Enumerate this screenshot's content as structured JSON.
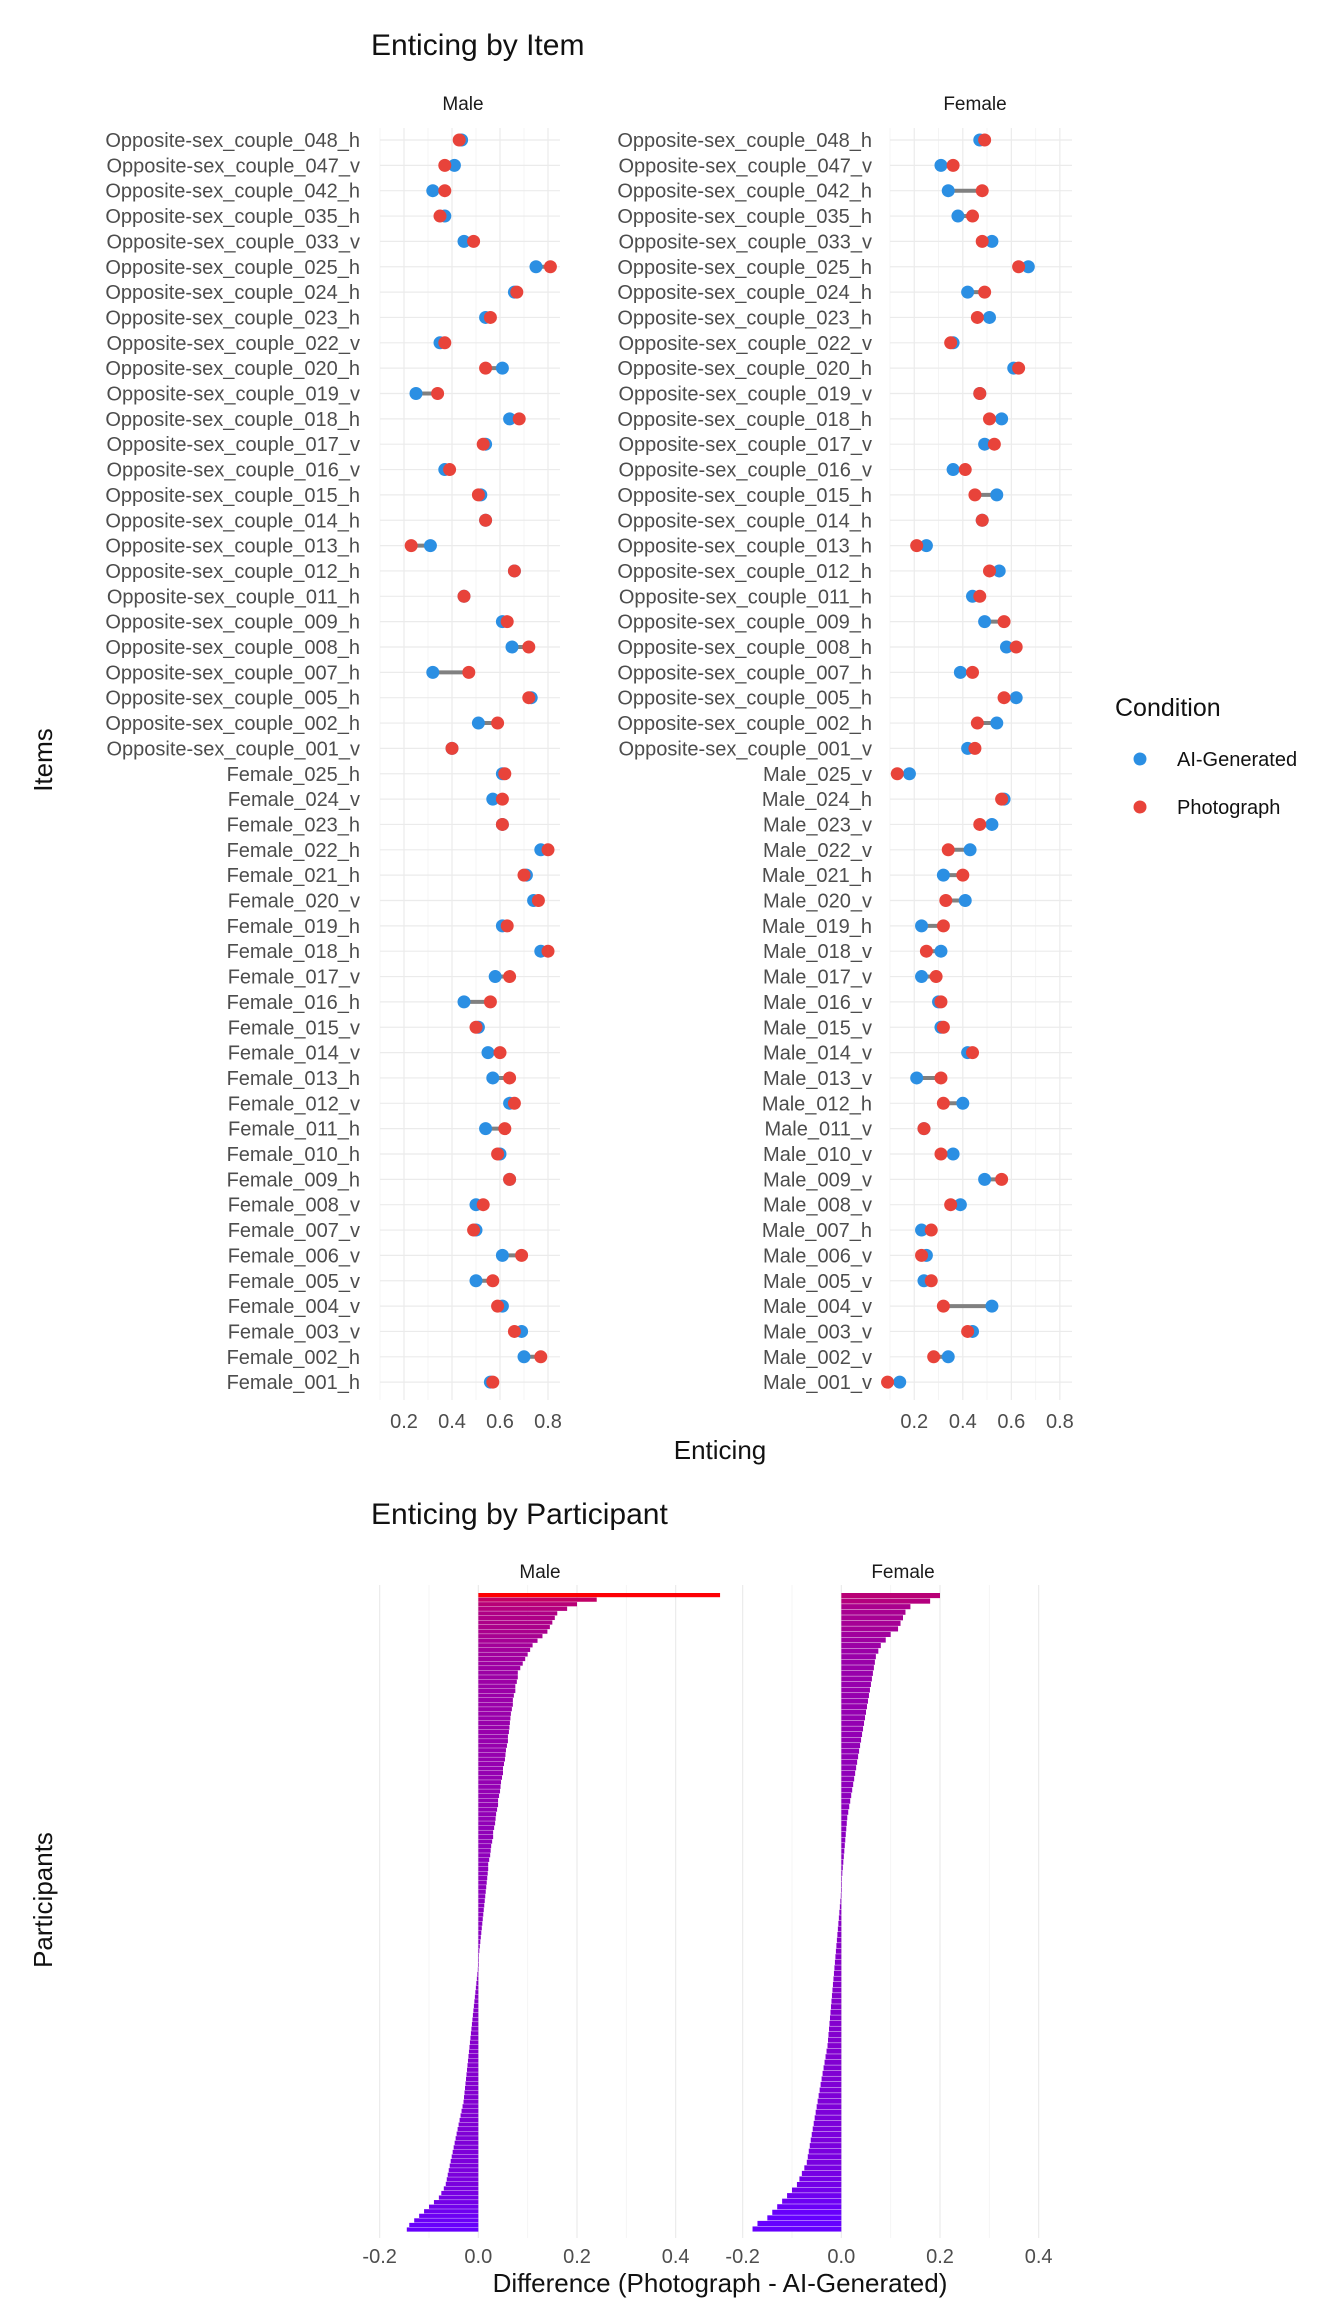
{
  "colors": {
    "ai_generated": "#2b8fe3",
    "photograph": "#e8433a",
    "segment": "#808080",
    "bar_low": "#6600ff",
    "bar_high": "#ff0000"
  },
  "chart_data": [
    {
      "type": "dumbbell",
      "title": "Enticing by Item",
      "xlabel": "Enticing",
      "ylabel": "Items",
      "xlim": [
        0.1,
        0.85
      ],
      "xticks": [
        "0.2",
        "0.4",
        "0.6",
        "0.8"
      ],
      "legend": {
        "title": "Condition",
        "placement": "right",
        "entries": [
          "AI-Generated",
          "Photograph"
        ]
      },
      "panels": [
        {
          "name": "Male",
          "items": [
            {
              "label": "Opposite-sex_couple_048_h",
              "ai": 0.44,
              "photo": 0.43
            },
            {
              "label": "Opposite-sex_couple_047_v",
              "ai": 0.41,
              "photo": 0.37
            },
            {
              "label": "Opposite-sex_couple_042_h",
              "ai": 0.32,
              "photo": 0.37
            },
            {
              "label": "Opposite-sex_couple_035_h",
              "ai": 0.37,
              "photo": 0.35
            },
            {
              "label": "Opposite-sex_couple_033_v",
              "ai": 0.45,
              "photo": 0.49
            },
            {
              "label": "Opposite-sex_couple_025_h",
              "ai": 0.75,
              "photo": 0.81
            },
            {
              "label": "Opposite-sex_couple_024_h",
              "ai": 0.66,
              "photo": 0.67
            },
            {
              "label": "Opposite-sex_couple_023_h",
              "ai": 0.54,
              "photo": 0.56
            },
            {
              "label": "Opposite-sex_couple_022_v",
              "ai": 0.35,
              "photo": 0.37
            },
            {
              "label": "Opposite-sex_couple_020_h",
              "ai": 0.61,
              "photo": 0.54
            },
            {
              "label": "Opposite-sex_couple_019_v",
              "ai": 0.25,
              "photo": 0.34
            },
            {
              "label": "Opposite-sex_couple_018_h",
              "ai": 0.64,
              "photo": 0.68
            },
            {
              "label": "Opposite-sex_couple_017_v",
              "ai": 0.54,
              "photo": 0.53
            },
            {
              "label": "Opposite-sex_couple_016_v",
              "ai": 0.37,
              "photo": 0.39
            },
            {
              "label": "Opposite-sex_couple_015_h",
              "ai": 0.52,
              "photo": 0.51
            },
            {
              "label": "Opposite-sex_couple_014_h",
              "ai": 0.54,
              "photo": 0.54
            },
            {
              "label": "Opposite-sex_couple_013_h",
              "ai": 0.31,
              "photo": 0.23
            },
            {
              "label": "Opposite-sex_couple_012_h",
              "ai": 0.66,
              "photo": 0.66
            },
            {
              "label": "Opposite-sex_couple_011_h",
              "ai": 0.45,
              "photo": 0.45
            },
            {
              "label": "Opposite-sex_couple_009_h",
              "ai": 0.61,
              "photo": 0.63
            },
            {
              "label": "Opposite-sex_couple_008_h",
              "ai": 0.65,
              "photo": 0.72
            },
            {
              "label": "Opposite-sex_couple_007_h",
              "ai": 0.32,
              "photo": 0.47
            },
            {
              "label": "Opposite-sex_couple_005_h",
              "ai": 0.73,
              "photo": 0.72
            },
            {
              "label": "Opposite-sex_couple_002_h",
              "ai": 0.51,
              "photo": 0.59
            },
            {
              "label": "Opposite-sex_couple_001_v",
              "ai": 0.4,
              "photo": 0.4
            },
            {
              "label": "Female_025_h",
              "ai": 0.61,
              "photo": 0.62
            },
            {
              "label": "Female_024_v",
              "ai": 0.57,
              "photo": 0.61
            },
            {
              "label": "Female_023_h",
              "ai": 0.61,
              "photo": 0.61
            },
            {
              "label": "Female_022_h",
              "ai": 0.77,
              "photo": 0.8
            },
            {
              "label": "Female_021_h",
              "ai": 0.71,
              "photo": 0.7
            },
            {
              "label": "Female_020_v",
              "ai": 0.74,
              "photo": 0.76
            },
            {
              "label": "Female_019_h",
              "ai": 0.61,
              "photo": 0.63
            },
            {
              "label": "Female_018_h",
              "ai": 0.77,
              "photo": 0.8
            },
            {
              "label": "Female_017_v",
              "ai": 0.58,
              "photo": 0.64
            },
            {
              "label": "Female_016_h",
              "ai": 0.45,
              "photo": 0.56
            },
            {
              "label": "Female_015_v",
              "ai": 0.51,
              "photo": 0.5
            },
            {
              "label": "Female_014_v",
              "ai": 0.55,
              "photo": 0.6
            },
            {
              "label": "Female_013_h",
              "ai": 0.57,
              "photo": 0.64
            },
            {
              "label": "Female_012_v",
              "ai": 0.64,
              "photo": 0.66
            },
            {
              "label": "Female_011_h",
              "ai": 0.54,
              "photo": 0.62
            },
            {
              "label": "Female_010_h",
              "ai": 0.6,
              "photo": 0.59
            },
            {
              "label": "Female_009_h",
              "ai": 0.64,
              "photo": 0.64
            },
            {
              "label": "Female_008_v",
              "ai": 0.5,
              "photo": 0.53
            },
            {
              "label": "Female_007_v",
              "ai": 0.5,
              "photo": 0.49
            },
            {
              "label": "Female_006_v",
              "ai": 0.61,
              "photo": 0.69
            },
            {
              "label": "Female_005_v",
              "ai": 0.5,
              "photo": 0.57
            },
            {
              "label": "Female_004_v",
              "ai": 0.61,
              "photo": 0.59
            },
            {
              "label": "Female_003_v",
              "ai": 0.69,
              "photo": 0.66
            },
            {
              "label": "Female_002_h",
              "ai": 0.7,
              "photo": 0.77
            },
            {
              "label": "Female_001_h",
              "ai": 0.56,
              "photo": 0.57
            }
          ]
        },
        {
          "name": "Female",
          "items": [
            {
              "label": "Opposite-sex_couple_048_h",
              "ai": 0.47,
              "photo": 0.49
            },
            {
              "label": "Opposite-sex_couple_047_v",
              "ai": 0.31,
              "photo": 0.36
            },
            {
              "label": "Opposite-sex_couple_042_h",
              "ai": 0.34,
              "photo": 0.48
            },
            {
              "label": "Opposite-sex_couple_035_h",
              "ai": 0.38,
              "photo": 0.44
            },
            {
              "label": "Opposite-sex_couple_033_v",
              "ai": 0.52,
              "photo": 0.48
            },
            {
              "label": "Opposite-sex_couple_025_h",
              "ai": 0.67,
              "photo": 0.63
            },
            {
              "label": "Opposite-sex_couple_024_h",
              "ai": 0.42,
              "photo": 0.49
            },
            {
              "label": "Opposite-sex_couple_023_h",
              "ai": 0.51,
              "photo": 0.46
            },
            {
              "label": "Opposite-sex_couple_022_v",
              "ai": 0.36,
              "photo": 0.35
            },
            {
              "label": "Opposite-sex_couple_020_h",
              "ai": 0.61,
              "photo": 0.63
            },
            {
              "label": "Opposite-sex_couple_019_v",
              "ai": 0.47,
              "photo": 0.47
            },
            {
              "label": "Opposite-sex_couple_018_h",
              "ai": 0.56,
              "photo": 0.51
            },
            {
              "label": "Opposite-sex_couple_017_v",
              "ai": 0.49,
              "photo": 0.53
            },
            {
              "label": "Opposite-sex_couple_016_v",
              "ai": 0.36,
              "photo": 0.41
            },
            {
              "label": "Opposite-sex_couple_015_h",
              "ai": 0.54,
              "photo": 0.45
            },
            {
              "label": "Opposite-sex_couple_014_h",
              "ai": 0.48,
              "photo": 0.48
            },
            {
              "label": "Opposite-sex_couple_013_h",
              "ai": 0.25,
              "photo": 0.21
            },
            {
              "label": "Opposite-sex_couple_012_h",
              "ai": 0.55,
              "photo": 0.51
            },
            {
              "label": "Opposite-sex_couple_011_h",
              "ai": 0.44,
              "photo": 0.47
            },
            {
              "label": "Opposite-sex_couple_009_h",
              "ai": 0.49,
              "photo": 0.57
            },
            {
              "label": "Opposite-sex_couple_008_h",
              "ai": 0.58,
              "photo": 0.62
            },
            {
              "label": "Opposite-sex_couple_007_h",
              "ai": 0.39,
              "photo": 0.44
            },
            {
              "label": "Opposite-sex_couple_005_h",
              "ai": 0.62,
              "photo": 0.57
            },
            {
              "label": "Opposite-sex_couple_002_h",
              "ai": 0.54,
              "photo": 0.46
            },
            {
              "label": "Opposite-sex_couple_001_v",
              "ai": 0.42,
              "photo": 0.45
            },
            {
              "label": "Male_025_v",
              "ai": 0.18,
              "photo": 0.13
            },
            {
              "label": "Male_024_h",
              "ai": 0.57,
              "photo": 0.56
            },
            {
              "label": "Male_023_v",
              "ai": 0.52,
              "photo": 0.47
            },
            {
              "label": "Male_022_v",
              "ai": 0.43,
              "photo": 0.34
            },
            {
              "label": "Male_021_h",
              "ai": 0.32,
              "photo": 0.4
            },
            {
              "label": "Male_020_v",
              "ai": 0.41,
              "photo": 0.33
            },
            {
              "label": "Male_019_h",
              "ai": 0.23,
              "photo": 0.32
            },
            {
              "label": "Male_018_v",
              "ai": 0.31,
              "photo": 0.25
            },
            {
              "label": "Male_017_v",
              "ai": 0.23,
              "photo": 0.29
            },
            {
              "label": "Male_016_v",
              "ai": 0.3,
              "photo": 0.31
            },
            {
              "label": "Male_015_v",
              "ai": 0.31,
              "photo": 0.32
            },
            {
              "label": "Male_014_v",
              "ai": 0.42,
              "photo": 0.44
            },
            {
              "label": "Male_013_v",
              "ai": 0.21,
              "photo": 0.31
            },
            {
              "label": "Male_012_h",
              "ai": 0.4,
              "photo": 0.32
            },
            {
              "label": "Male_011_v",
              "ai": 0.24,
              "photo": 0.24
            },
            {
              "label": "Male_010_v",
              "ai": 0.36,
              "photo": 0.31
            },
            {
              "label": "Male_009_v",
              "ai": 0.49,
              "photo": 0.56
            },
            {
              "label": "Male_008_v",
              "ai": 0.39,
              "photo": 0.35
            },
            {
              "label": "Male_007_h",
              "ai": 0.23,
              "photo": 0.27
            },
            {
              "label": "Male_006_v",
              "ai": 0.25,
              "photo": 0.23
            },
            {
              "label": "Male_005_v",
              "ai": 0.24,
              "photo": 0.27
            },
            {
              "label": "Male_004_v",
              "ai": 0.52,
              "photo": 0.32
            },
            {
              "label": "Male_003_v",
              "ai": 0.44,
              "photo": 0.42
            },
            {
              "label": "Male_002_v",
              "ai": 0.34,
              "photo": 0.28
            },
            {
              "label": "Male_001_v",
              "ai": 0.14,
              "photo": 0.09
            }
          ]
        }
      ]
    },
    {
      "type": "bar",
      "orientation": "horizontal",
      "title": "Enticing by Participant",
      "xlabel": "Difference (Photograph - AI-Generated)",
      "ylabel": "Participants",
      "xlim": [
        -0.25,
        0.5
      ],
      "xticks": [
        "-0.2",
        "0.0",
        "0.2",
        "0.4"
      ],
      "fill_scale": {
        "low": "#6600ff",
        "high": "#ff0000",
        "range": [
          -0.15,
          0.5
        ]
      },
      "panels": [
        {
          "name": "Male",
          "values": [
            0.49,
            0.24,
            0.2,
            0.18,
            0.16,
            0.155,
            0.15,
            0.145,
            0.14,
            0.13,
            0.12,
            0.11,
            0.105,
            0.1,
            0.095,
            0.09,
            0.085,
            0.08,
            0.08,
            0.078,
            0.075,
            0.075,
            0.072,
            0.07,
            0.07,
            0.068,
            0.066,
            0.065,
            0.064,
            0.063,
            0.062,
            0.06,
            0.06,
            0.058,
            0.056,
            0.055,
            0.054,
            0.052,
            0.05,
            0.05,
            0.048,
            0.046,
            0.045,
            0.044,
            0.042,
            0.04,
            0.04,
            0.038,
            0.036,
            0.035,
            0.034,
            0.032,
            0.03,
            0.03,
            0.028,
            0.026,
            0.025,
            0.024,
            0.022,
            0.02,
            0.02,
            0.019,
            0.018,
            0.017,
            0.016,
            0.015,
            0.014,
            0.013,
            0.012,
            0.011,
            0.01,
            0.009,
            0.008,
            0.007,
            0.006,
            0.005,
            0.004,
            0.003,
            0.002,
            0.001,
            0.0,
            0.0,
            -0.001,
            -0.002,
            -0.003,
            -0.004,
            -0.005,
            -0.006,
            -0.007,
            -0.008,
            -0.009,
            -0.01,
            -0.011,
            -0.012,
            -0.013,
            -0.014,
            -0.015,
            -0.016,
            -0.017,
            -0.018,
            -0.019,
            -0.02,
            -0.021,
            -0.022,
            -0.023,
            -0.024,
            -0.025,
            -0.026,
            -0.027,
            -0.028,
            -0.029,
            -0.03,
            -0.032,
            -0.034,
            -0.036,
            -0.038,
            -0.04,
            -0.042,
            -0.044,
            -0.046,
            -0.048,
            -0.05,
            -0.052,
            -0.054,
            -0.056,
            -0.058,
            -0.06,
            -0.062,
            -0.064,
            -0.066,
            -0.07,
            -0.075,
            -0.08,
            -0.09,
            -0.1,
            -0.11,
            -0.12,
            -0.13,
            -0.14,
            -0.145
          ]
        },
        {
          "name": "Female",
          "values": [
            0.2,
            0.18,
            0.14,
            0.13,
            0.125,
            0.12,
            0.115,
            0.1,
            0.09,
            0.08,
            0.075,
            0.07,
            0.068,
            0.066,
            0.064,
            0.062,
            0.06,
            0.058,
            0.056,
            0.054,
            0.052,
            0.05,
            0.048,
            0.046,
            0.044,
            0.042,
            0.04,
            0.038,
            0.036,
            0.034,
            0.032,
            0.03,
            0.028,
            0.026,
            0.024,
            0.022,
            0.02,
            0.018,
            0.016,
            0.014,
            0.012,
            0.011,
            0.01,
            0.009,
            0.008,
            0.007,
            0.006,
            0.005,
            0.004,
            0.003,
            0.002,
            0.001,
            0.0,
            0.0,
            -0.001,
            -0.002,
            -0.003,
            -0.004,
            -0.005,
            -0.006,
            -0.007,
            -0.008,
            -0.009,
            -0.01,
            -0.011,
            -0.012,
            -0.013,
            -0.014,
            -0.015,
            -0.016,
            -0.017,
            -0.018,
            -0.019,
            -0.02,
            -0.021,
            -0.022,
            -0.023,
            -0.024,
            -0.025,
            -0.026,
            -0.027,
            -0.028,
            -0.03,
            -0.032,
            -0.034,
            -0.036,
            -0.038,
            -0.04,
            -0.042,
            -0.044,
            -0.046,
            -0.048,
            -0.05,
            -0.052,
            -0.054,
            -0.056,
            -0.058,
            -0.06,
            -0.062,
            -0.064,
            -0.066,
            -0.068,
            -0.07,
            -0.075,
            -0.08,
            -0.085,
            -0.09,
            -0.1,
            -0.11,
            -0.12,
            -0.13,
            -0.14,
            -0.15,
            -0.17,
            -0.18
          ]
        }
      ]
    }
  ]
}
